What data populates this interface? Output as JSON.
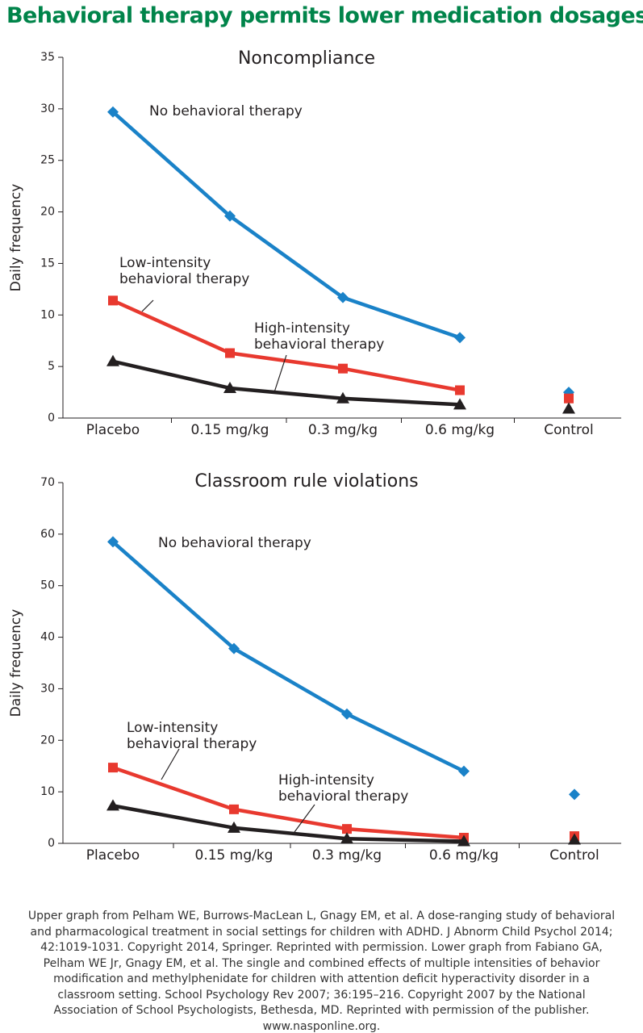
{
  "title": "Behavioral therapy permits lower medication dosages",
  "chart_data": [
    {
      "type": "line",
      "title": "Noncompliance",
      "ylabel": "Daily frequency",
      "categories": [
        "Placebo",
        "0.15 mg/kg",
        "0.3 mg/kg",
        "0.6 mg/kg",
        "Control"
      ],
      "unlinked_categories": [
        "Control"
      ],
      "ylim": [
        0,
        35
      ],
      "yticks": [
        0,
        5,
        10,
        15,
        20,
        25,
        30,
        35
      ],
      "series": [
        {
          "name": "No behavioral therapy",
          "color": "#1a82c8",
          "marker": "diamond",
          "values": [
            29.7,
            19.6,
            11.7,
            7.8,
            2.5
          ]
        },
        {
          "name": "Low-intensity\nbehavioral therapy",
          "color": "#e8392f",
          "marker": "square",
          "values": [
            11.4,
            6.3,
            4.8,
            2.7,
            1.9
          ]
        },
        {
          "name": "High-intensity\nbehavioral therapy",
          "color": "#231f20",
          "marker": "triangle",
          "values": [
            5.5,
            2.9,
            1.9,
            1.3,
            0.9
          ]
        }
      ]
    },
    {
      "type": "line",
      "title": "Classroom rule violations",
      "ylabel": "Daily frequency",
      "categories": [
        "Placebo",
        "0.15 mg/kg",
        "0.3 mg/kg",
        "0.6 mg/kg",
        "Control"
      ],
      "unlinked_categories": [
        "Control"
      ],
      "ylim": [
        0,
        70
      ],
      "yticks": [
        0,
        10,
        20,
        30,
        40,
        50,
        60,
        70
      ],
      "series": [
        {
          "name": "No behavioral therapy",
          "color": "#1a82c8",
          "marker": "diamond",
          "values": [
            58.5,
            37.8,
            25.1,
            14.0,
            9.5
          ]
        },
        {
          "name": "Low-intensity\nbehavioral therapy",
          "color": "#e8392f",
          "marker": "square",
          "values": [
            14.7,
            6.6,
            2.8,
            1.1,
            1.4
          ]
        },
        {
          "name": "High-intensity\nbehavioral therapy",
          "color": "#231f20",
          "marker": "triangle",
          "values": [
            7.3,
            3.0,
            0.9,
            0.4,
            0.7
          ]
        }
      ]
    }
  ],
  "source": "Upper graph from Pelham WE, Burrows-MacLean L, Gnagy EM, et al. A dose-ranging study of behavioral and pharmacological treatment in social settings for children with ADHD. J Abnorm Child Psychol 2014; 42:1019-1031. Copyright 2014, Springer. Reprinted with permission. Lower graph from Fabiano GA, Pelham WE Jr, Gnagy EM, et al. The single and combined effects of multiple intensities of behavior modification and methylphenidate for children with attention deficit hyperactivity disorder in a classroom setting. School Psychology Rev 2007; 36:195–216. Copyright 2007 by the National Association of School Psychologists, Bethesda, MD. Reprinted with permission of the publisher. www.nasponline.org."
}
